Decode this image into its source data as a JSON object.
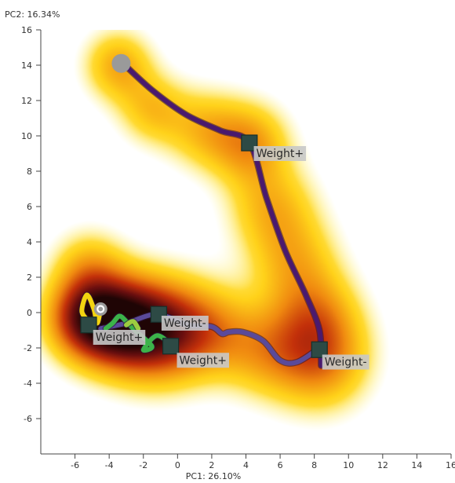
{
  "chart_data": {
    "type": "scatter",
    "xlabel": "PC1: 26.10%",
    "ylabel": "PC2: 16.34%",
    "xlim": [
      -8,
      16
    ],
    "ylim": [
      -8,
      16
    ],
    "xticks": [
      -6,
      -4,
      -2,
      0,
      2,
      4,
      6,
      8,
      10,
      12,
      14,
      16
    ],
    "yticks": [
      -6,
      -4,
      -2,
      0,
      2,
      4,
      6,
      8,
      10,
      12,
      14,
      16
    ],
    "grid": false,
    "density_color_scale": [
      "#fff27a",
      "#ffd21a",
      "#f08a10",
      "#c3300a",
      "#6b0f0f",
      "#1f0505"
    ],
    "density_centers": [
      {
        "x": -3.5,
        "y": 14.0,
        "sigma": 1.4,
        "weight": 0.65
      },
      {
        "x": -1.5,
        "y": 11.5,
        "sigma": 1.4,
        "weight": 0.5
      },
      {
        "x": 1.5,
        "y": 10.4,
        "sigma": 1.6,
        "weight": 0.5
      },
      {
        "x": 4.2,
        "y": 9.6,
        "sigma": 1.6,
        "weight": 0.7
      },
      {
        "x": 5.5,
        "y": 6.0,
        "sigma": 1.8,
        "weight": 0.55
      },
      {
        "x": 6.8,
        "y": 3.0,
        "sigma": 1.8,
        "weight": 0.5
      },
      {
        "x": 8.0,
        "y": 0.0,
        "sigma": 1.8,
        "weight": 0.55
      },
      {
        "x": 8.3,
        "y": -2.6,
        "sigma": 2.0,
        "weight": 0.85
      },
      {
        "x": 5.0,
        "y": -2.2,
        "sigma": 1.8,
        "weight": 0.5
      },
      {
        "x": 2.0,
        "y": -1.0,
        "sigma": 1.8,
        "weight": 0.55
      },
      {
        "x": -1.0,
        "y": -1.0,
        "sigma": 2.0,
        "weight": 1.3
      },
      {
        "x": -3.5,
        "y": -0.6,
        "sigma": 1.8,
        "weight": 1.3
      },
      {
        "x": -5.5,
        "y": -0.3,
        "sigma": 1.6,
        "weight": 1.1
      },
      {
        "x": -5.2,
        "y": 2.6,
        "sigma": 1.5,
        "weight": 0.5
      }
    ],
    "series": [
      {
        "color": "#4a1a6e",
        "points": [
          [
            -3.3,
            14.2
          ],
          [
            -1.5,
            12.6
          ],
          [
            0.5,
            11.2
          ],
          [
            2.5,
            10.3
          ],
          [
            4.2,
            9.6
          ],
          [
            5.2,
            6.5
          ],
          [
            6.3,
            3.5
          ],
          [
            7.5,
            1.0
          ],
          [
            8.3,
            -1.0
          ],
          [
            8.4,
            -3.0
          ]
        ]
      },
      {
        "color": "#5a4a9a",
        "points": [
          [
            8.3,
            -2.0
          ],
          [
            7.0,
            -2.8
          ],
          [
            6.0,
            -2.7
          ],
          [
            5.0,
            -1.6
          ],
          [
            3.8,
            -1.1
          ],
          [
            3.0,
            -1.1
          ],
          [
            2.6,
            -1.2
          ],
          [
            2.0,
            -0.8
          ],
          [
            0.6,
            -0.7
          ],
          [
            -1.2,
            -0.1
          ],
          [
            -3.0,
            -0.6
          ],
          [
            -4.5,
            -0.9
          ]
        ]
      },
      {
        "color": "#3cb34a",
        "points": [
          [
            -0.3,
            -1.9
          ],
          [
            -1.2,
            -1.3
          ],
          [
            -2.0,
            -2.1
          ],
          [
            -1.5,
            -1.9
          ],
          [
            -2.5,
            -1.0
          ],
          [
            -3.0,
            -0.5
          ],
          [
            -3.4,
            -0.2
          ],
          [
            -3.8,
            -0.6
          ],
          [
            -4.2,
            -0.9
          ]
        ]
      },
      {
        "color": "#9ccc40",
        "points": [
          [
            -3.0,
            -0.7
          ],
          [
            -2.6,
            -0.5
          ],
          [
            -2.3,
            -0.9
          ]
        ]
      },
      {
        "color": "#f2d410",
        "points": [
          [
            -5.3,
            -0.4
          ],
          [
            -5.6,
            0.1
          ],
          [
            -5.3,
            1.0
          ],
          [
            -4.9,
            0.2
          ],
          [
            -4.7,
            -0.6
          ],
          [
            -4.5,
            0.2
          ]
        ]
      }
    ],
    "markers": [
      {
        "shape": "circle",
        "x": -3.3,
        "y": 14.1,
        "color": "#9a9a9a"
      },
      {
        "shape": "ring",
        "x": -4.5,
        "y": 0.2,
        "color": "#9a9a9a"
      },
      {
        "shape": "square",
        "x": 4.2,
        "y": 9.6,
        "color": "#2d4a45"
      },
      {
        "shape": "square",
        "x": 8.3,
        "y": -2.1,
        "color": "#2d4a45"
      },
      {
        "shape": "square",
        "x": -1.1,
        "y": -0.1,
        "color": "#2d4a45"
      },
      {
        "shape": "square",
        "x": -0.4,
        "y": -1.9,
        "color": "#2d4a45"
      },
      {
        "shape": "square",
        "x": -5.2,
        "y": -0.7,
        "color": "#2d4a45"
      }
    ],
    "annotations": [
      {
        "text": "Weight+",
        "x": 4.6,
        "y": 8.8
      },
      {
        "text": "Weight-",
        "x": 8.6,
        "y": -3.0
      },
      {
        "text": "Weight-",
        "x": -0.8,
        "y": -0.8
      },
      {
        "text": "Weight+",
        "x": 0.1,
        "y": -2.9
      },
      {
        "text": "Weight+",
        "x": -4.8,
        "y": -1.6
      }
    ]
  }
}
